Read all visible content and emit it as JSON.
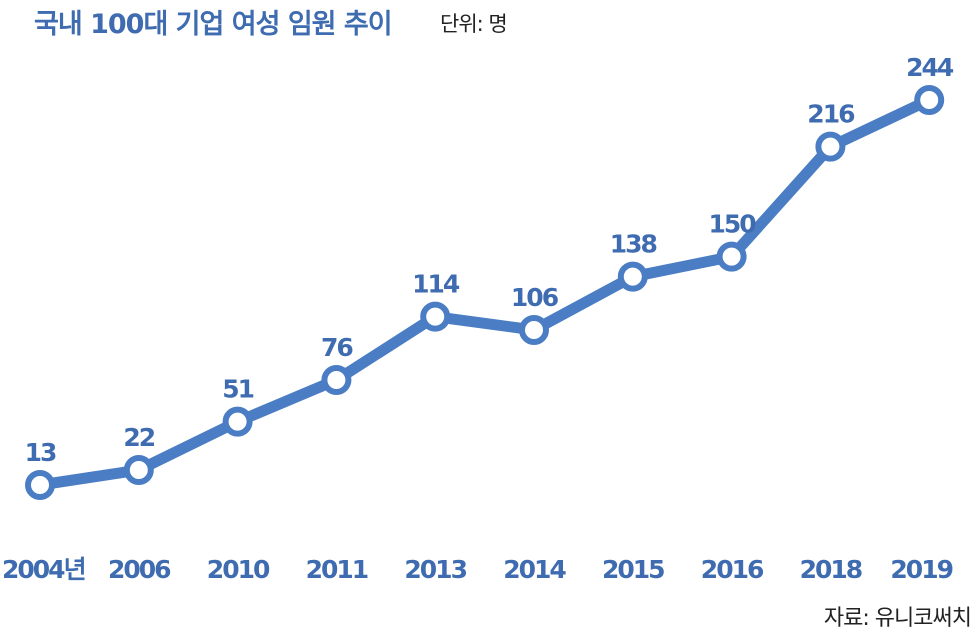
{
  "header": {
    "title": "국내 100대 기업 여성 임원 추이",
    "unit": "단위: 명"
  },
  "source": "자료: 유니코써치",
  "colors": {
    "line": "#4A7DC4",
    "text": "#3F6CB0"
  },
  "chart_data": {
    "type": "line",
    "title": "국내 100대 기업 여성 임원 추이",
    "ylabel": "단위: 명",
    "categories": [
      "2004년",
      "2006",
      "2010",
      "2011",
      "2013",
      "2014",
      "2015",
      "2016",
      "2018",
      "2019"
    ],
    "series": [
      {
        "values": [
          13,
          22,
          51,
          76,
          114,
          106,
          138,
          150,
          216,
          244
        ]
      }
    ],
    "ylim": [
      0,
      260
    ],
    "grid": false,
    "data_labels": true
  }
}
